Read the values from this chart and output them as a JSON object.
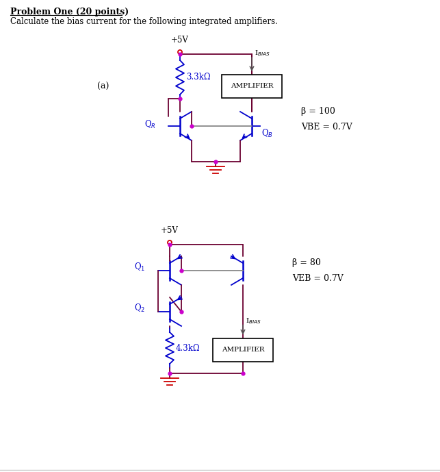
{
  "title": "Problem One (20 points)",
  "subtitle": "Calculate the bias current for the following integrated amplifiers.",
  "fig_width": 6.43,
  "fig_height": 6.89,
  "bg_color": "#ffffff",
  "text_color": "#000000",
  "wire_color_dark": "#6B0030",
  "wire_color_red": "#cc0000",
  "resistor_color": "#0000cc",
  "transistor_color": "#0000cc",
  "node_color": "#cc00cc",
  "ibias_arrow_color": "#555555",
  "beta_a_text": "β = 100",
  "vbe_a_text": "VBE = 0.7V",
  "beta_b_text": "β = 80",
  "veb_b_text": "VEB = 0.7V"
}
